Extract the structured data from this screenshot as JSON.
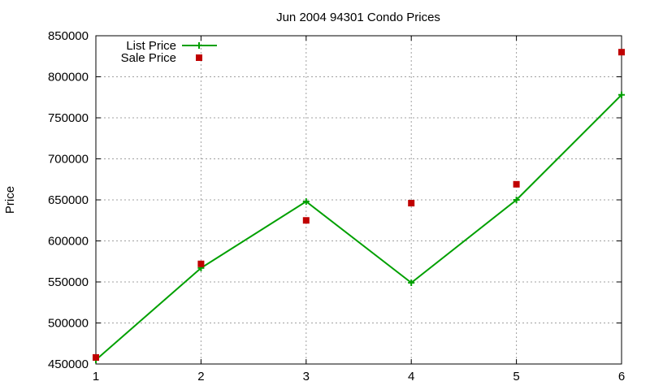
{
  "chart_data": {
    "type": "line",
    "title": "Jun 2004 94301 Condo Prices",
    "xlabel": "",
    "ylabel": "Price",
    "xlim": [
      1,
      6
    ],
    "ylim": [
      450000,
      850000
    ],
    "x_ticks": [
      1,
      2,
      3,
      4,
      5,
      6
    ],
    "y_ticks": [
      450000,
      500000,
      550000,
      600000,
      650000,
      700000,
      750000,
      800000,
      850000
    ],
    "grid": true,
    "legend_position": "top-left",
    "series": [
      {
        "name": "List Price",
        "style": "line with plus markers",
        "color": "#00a000",
        "x": [
          1,
          2,
          3,
          4,
          5,
          6
        ],
        "values": [
          455000,
          567000,
          648000,
          549000,
          650000,
          778000
        ]
      },
      {
        "name": "Sale Price",
        "style": "square markers",
        "color": "#c00000",
        "x": [
          1,
          2,
          3,
          4,
          5,
          6
        ],
        "values": [
          458000,
          572000,
          625000,
          646000,
          669000,
          830000
        ]
      }
    ]
  }
}
